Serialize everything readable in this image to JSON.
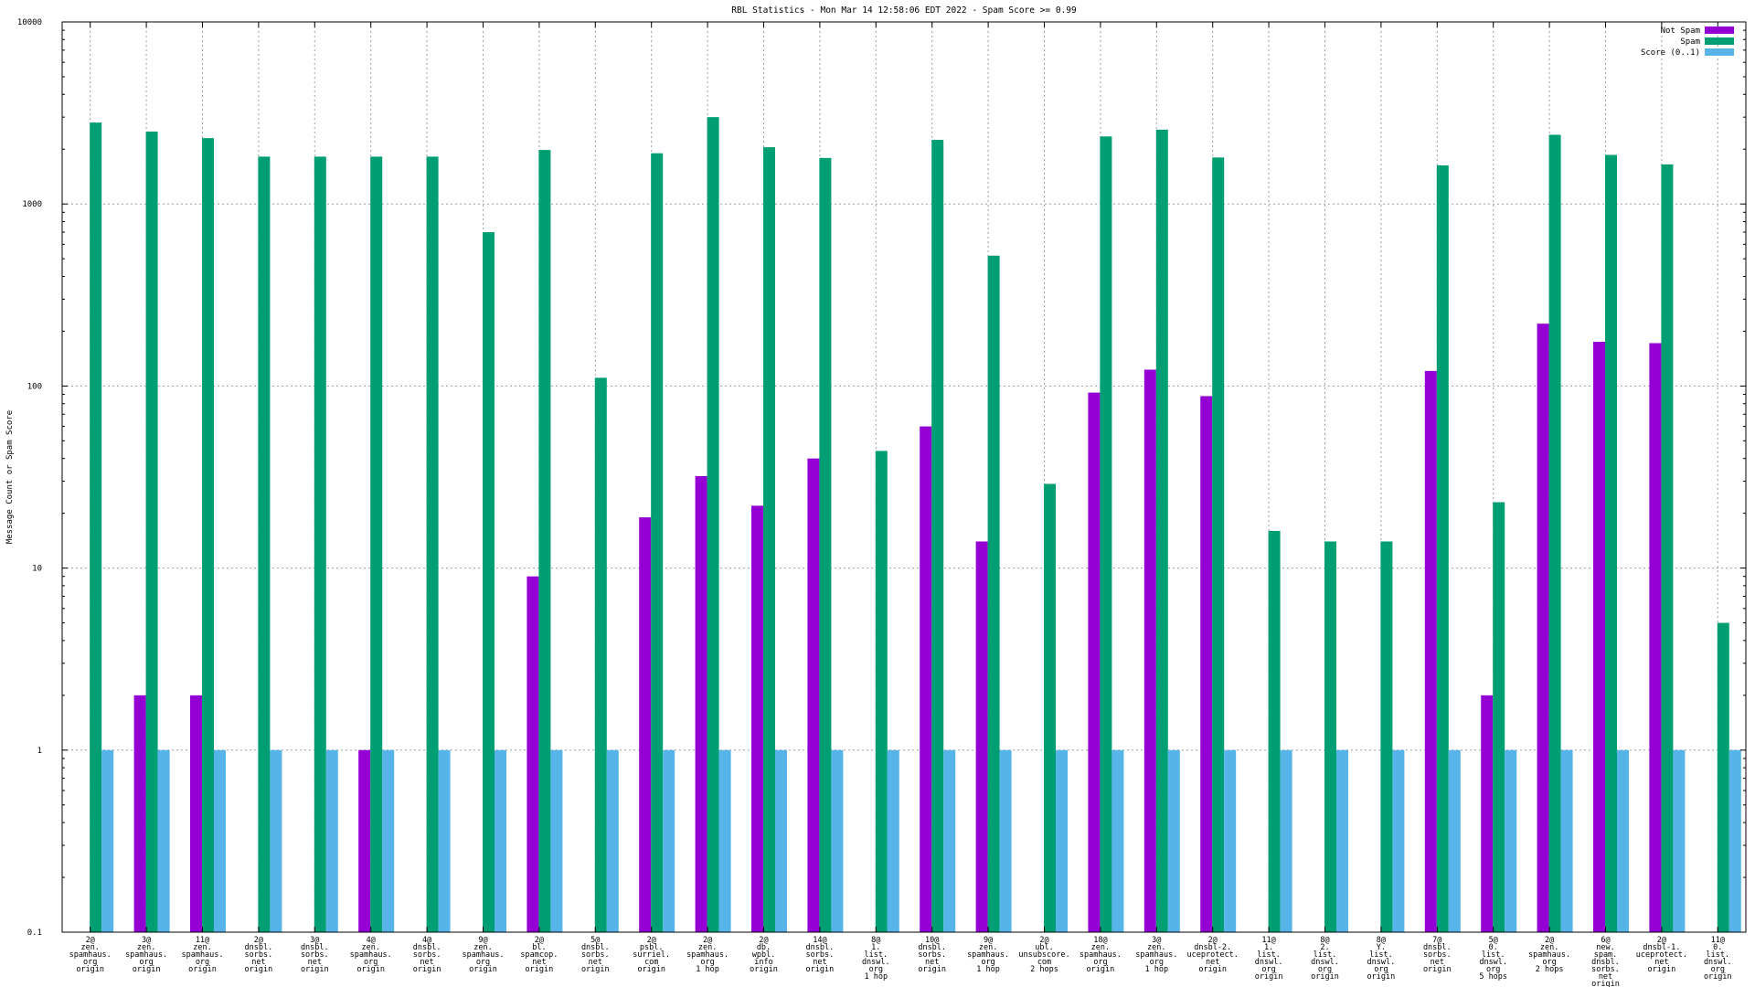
{
  "chart_data": {
    "type": "bar",
    "title": "RBL Statistics - Mon Mar 14 12:58:06 EDT 2022 - Spam Score >= 0.99",
    "xlabel": "",
    "ylabel": "Message Count or Spam Score",
    "yscale": "log",
    "ylim": [
      0.1,
      10000
    ],
    "yticks": [
      "0.1",
      "1",
      "10",
      "100",
      "1000",
      "10000"
    ],
    "grid": true,
    "legend_position": "top-right",
    "categories": [
      [
        "2@",
        "zen.",
        "spamhaus.",
        "org",
        "origin"
      ],
      [
        "3@",
        "zen.",
        "spamhaus.",
        "org",
        "origin"
      ],
      [
        "11@",
        "zen.",
        "spamhaus.",
        "org",
        "origin"
      ],
      [
        "2@",
        "dnsbl.",
        "sorbs.",
        "net",
        "origin"
      ],
      [
        "3@",
        "dnsbl.",
        "sorbs.",
        "net",
        "origin"
      ],
      [
        "4@",
        "zen.",
        "spamhaus.",
        "org",
        "origin"
      ],
      [
        "4@",
        "dnsbl.",
        "sorbs.",
        "net",
        "origin"
      ],
      [
        "9@",
        "zen.",
        "spamhaus.",
        "org",
        "origin"
      ],
      [
        "2@",
        "bl.",
        "spamcop.",
        "net",
        "origin"
      ],
      [
        "5@",
        "dnsbl.",
        "sorbs.",
        "net",
        "origin"
      ],
      [
        "2@",
        "psbl.",
        "surriel.",
        "com",
        "origin"
      ],
      [
        "2@",
        "zen.",
        "spamhaus.",
        "org",
        "1 hop"
      ],
      [
        "2@",
        "db.",
        "wpbl.",
        "info",
        "origin"
      ],
      [
        "14@",
        "dnsbl.",
        "sorbs.",
        "net",
        "origin"
      ],
      [
        "8@",
        "1.",
        "list.",
        "dnswl.",
        "org",
        "1 hop"
      ],
      [
        "10@",
        "dnsbl.",
        "sorbs.",
        "net",
        "origin"
      ],
      [
        "9@",
        "zen.",
        "spamhaus.",
        "org",
        "1 hop"
      ],
      [
        "2@",
        "ubl.",
        "unsubscore.",
        "com",
        "2 hops"
      ],
      [
        "18@",
        "zen.",
        "spamhaus.",
        "org",
        "origin"
      ],
      [
        "3@",
        "zen.",
        "spamhaus.",
        "org",
        "1 hop"
      ],
      [
        "2@",
        "dnsbl-2.",
        "uceprotect.",
        "net",
        "origin"
      ],
      [
        "11@",
        "1.",
        "list.",
        "dnswl.",
        "org",
        "origin"
      ],
      [
        "8@",
        "2.",
        "list.",
        "dnswl.",
        "org",
        "origin"
      ],
      [
        "8@",
        "Y.",
        "list.",
        "dnswl.",
        "org",
        "origin"
      ],
      [
        "7@",
        "dnsbl.",
        "sorbs.",
        "net",
        "origin"
      ],
      [
        "5@",
        "0.",
        "list.",
        "dnswl.",
        "org",
        "5 hops"
      ],
      [
        "2@",
        "zen.",
        "spamhaus.",
        "org",
        "2 hops"
      ],
      [
        "6@",
        "new.",
        "spam.",
        "dnsbl.",
        "sorbs.",
        "net",
        "origin"
      ],
      [
        "2@",
        "dnsbl-1.",
        "uceprotect.",
        "net",
        "origin"
      ],
      [
        "11@",
        "0.",
        "list.",
        "dnswl.",
        "org",
        "origin"
      ]
    ],
    "series": [
      {
        "name": "Not Spam",
        "color": "#9400d3",
        "values": [
          null,
          2,
          2,
          null,
          null,
          1,
          null,
          null,
          9,
          null,
          19,
          32,
          22,
          40,
          null,
          60,
          14,
          null,
          92,
          123,
          88,
          null,
          null,
          null,
          121,
          2,
          220,
          175,
          172,
          null
        ]
      },
      {
        "name": "Spam",
        "color": "#009e73",
        "values": [
          2800,
          2500,
          2300,
          1820,
          1820,
          1820,
          1820,
          700,
          1980,
          111,
          1900,
          3000,
          2050,
          1790,
          44,
          2250,
          520,
          29,
          2350,
          2560,
          1800,
          16,
          14,
          14,
          1630,
          23,
          2400,
          1860,
          1650,
          5
        ]
      },
      {
        "name": "Score (0..1)",
        "color": "#56b4e9",
        "values": [
          1,
          1,
          1,
          1,
          1,
          1,
          1,
          1,
          1,
          1,
          1,
          1,
          1,
          1,
          1,
          1,
          1,
          1,
          1,
          1,
          1,
          1,
          1,
          1,
          1,
          1,
          1,
          1,
          1,
          1
        ]
      }
    ]
  }
}
